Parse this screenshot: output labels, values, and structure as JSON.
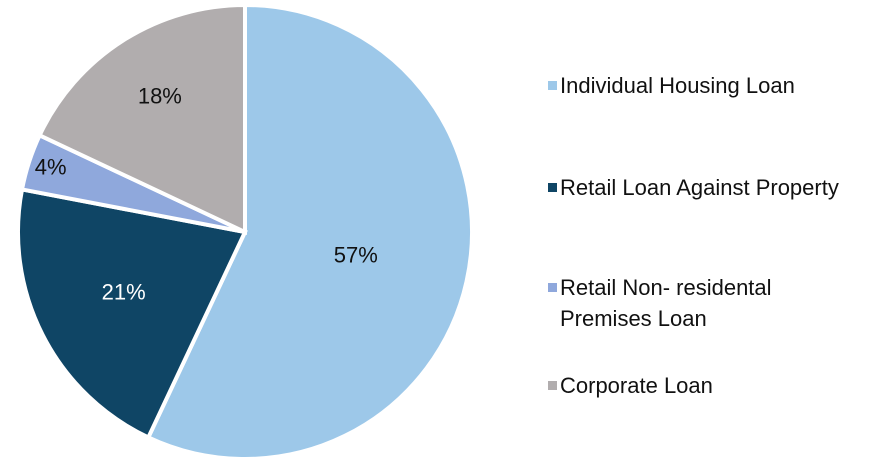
{
  "chart_data": {
    "type": "pie",
    "categories": [
      "Individual Housing Loan",
      "Retail Loan Against Property",
      "Retail Non- residental Premises Loan",
      "Corporate Loan"
    ],
    "values": [
      57,
      21,
      4,
      18
    ],
    "value_labels": [
      "57%",
      "21%",
      "4%",
      "18%"
    ],
    "colors": [
      "#9dc8e9",
      "#0f4565",
      "#8fa8dc",
      "#b1adae"
    ],
    "legend": "right"
  }
}
